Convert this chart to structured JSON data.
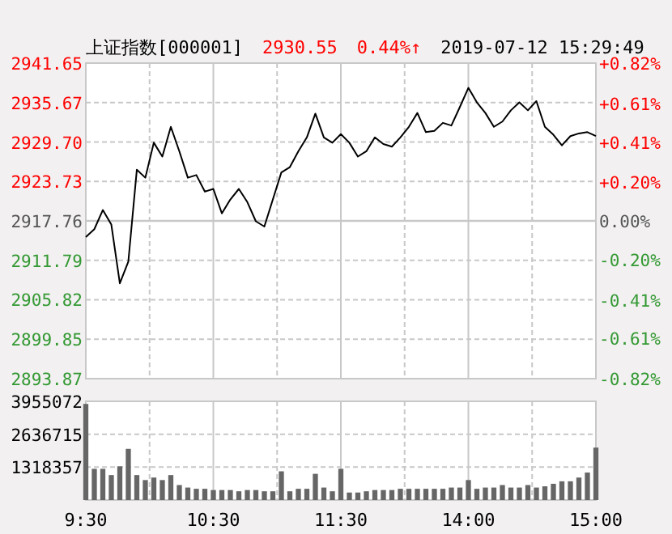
{
  "chart_data": [
    {
      "type": "line",
      "title": "上证指数[000001]",
      "annotations": [
        "2930.55",
        "0.44%↑",
        "2019-07-12 15:29:49"
      ],
      "color": "#000000",
      "grid": true,
      "tick_labels": "y",
      "categories": [
        null,
        null,
        null,
        null,
        null,
        null,
        null,
        null,
        null,
        null,
        null,
        null,
        null,
        null,
        null,
        null,
        null,
        null,
        null,
        null,
        null,
        null,
        null,
        null,
        null,
        null,
        null,
        null,
        null,
        null,
        null,
        null,
        null,
        null,
        null,
        null,
        null,
        null,
        null,
        null,
        null,
        null,
        null,
        null,
        null,
        null,
        null,
        null,
        null,
        null,
        null,
        null,
        null,
        null,
        null,
        null,
        null,
        null,
        null,
        null,
        null
      ],
      "values": [
        2915.3,
        2916.5,
        2919.4,
        2917.2,
        2908.3,
        2911.6,
        2925.5,
        2924.3,
        2929.6,
        2927.5,
        2932.0,
        2928.3,
        2924.3,
        2924.7,
        2922.2,
        2922.6,
        2918.9,
        2921.0,
        2922.6,
        2920.6,
        2917.7,
        2916.9,
        2921.0,
        2925.1,
        2925.9,
        2928.3,
        2930.4,
        2934.0,
        2930.4,
        2929.6,
        2930.9,
        2929.6,
        2927.5,
        2928.3,
        2930.4,
        2929.4,
        2929.0,
        2930.4,
        2932.0,
        2934.1,
        2931.2,
        2931.4,
        2932.6,
        2932.2,
        2935.0,
        2937.9,
        2935.7,
        2934.1,
        2932.0,
        2932.8,
        2934.5,
        2935.7,
        2934.5,
        2935.9,
        2932.0,
        2930.8,
        2929.2,
        2930.6,
        2931.0,
        2931.2,
        2930.6
      ],
      "ylim": [
        2893.87,
        2941.65
      ],
      "yticks": [
        2941.65,
        2935.67,
        {
          "value": 2929.7,
          "label": "2929.70"
        },
        2923.73,
        2917.76,
        2911.79,
        2905.82,
        2899.85,
        2893.87
      ],
      "y2lim": [
        -0.82,
        0.82
      ],
      "y2ticks": [
        {
          "value": 0.82,
          "label": "+0.82%"
        },
        {
          "value": 0.61,
          "label": "+0.61%"
        },
        {
          "value": 0.41,
          "label": "+0.41%"
        },
        {
          "value": 0.2,
          "label": "+0.20%"
        },
        {
          "value": 0,
          "label": "0.00%"
        },
        {
          "value": -0.2,
          "label": "-0.20%"
        },
        {
          "value": -0.41,
          "label": "-0.41%"
        },
        {
          "value": -0.61,
          "label": "-0.61%"
        },
        {
          "value": -0.82,
          "label": "-0.82%"
        }
      ],
      "ref_lines": [
        {
          "axis": "y2",
          "value": 0
        }
      ]
    },
    {
      "type": "bar",
      "color": "#666666",
      "grid": true,
      "categories": [
        "9:30",
        null,
        null,
        null,
        null,
        null,
        null,
        null,
        null,
        null,
        null,
        null,
        null,
        null,
        null,
        "10:30",
        null,
        null,
        null,
        null,
        null,
        null,
        null,
        null,
        null,
        null,
        null,
        null,
        null,
        null,
        "11:30",
        null,
        null,
        null,
        null,
        null,
        null,
        null,
        null,
        null,
        null,
        null,
        null,
        null,
        null,
        "14:00",
        null,
        null,
        null,
        null,
        null,
        null,
        null,
        null,
        null,
        null,
        null,
        null,
        null,
        null,
        "15:00"
      ],
      "values": [
        3850000,
        1250000,
        1250000,
        1000000,
        1350000,
        2050000,
        1000000,
        800000,
        900000,
        800000,
        1000000,
        600000,
        500000,
        450000,
        450000,
        400000,
        400000,
        400000,
        350000,
        400000,
        400000,
        350000,
        350000,
        1150000,
        350000,
        450000,
        450000,
        1050000,
        500000,
        350000,
        1250000,
        300000,
        300000,
        350000,
        400000,
        400000,
        400000,
        450000,
        450000,
        450000,
        450000,
        450000,
        450000,
        500000,
        500000,
        800000,
        450000,
        500000,
        500000,
        600000,
        500000,
        500000,
        600000,
        500000,
        550000,
        650000,
        750000,
        750000,
        900000,
        1100000,
        2100000
      ],
      "ylim": [
        0,
        3955072
      ],
      "yticks": [
        {
          "value": 0,
          "label": null
        },
        1318357,
        2636715,
        3955072
      ]
    }
  ]
}
